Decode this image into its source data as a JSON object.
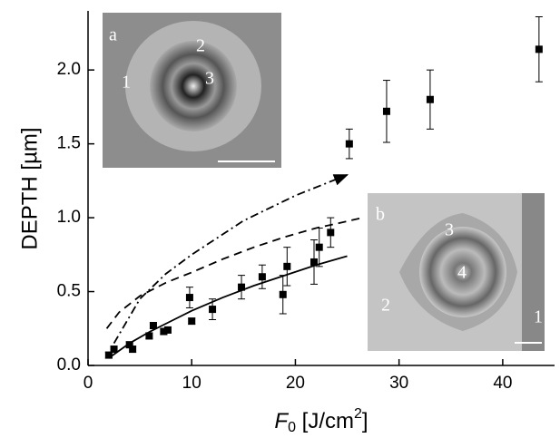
{
  "chart_data": {
    "type": "scatter",
    "ylabel": "DEPTH [µm]",
    "xlabel": {
      "main": "F",
      "sub": "0",
      "unit": " [J/cm",
      "sup": "2",
      "end": "]"
    },
    "xlim": [
      0,
      45
    ],
    "ylim": [
      0,
      2.4
    ],
    "xticks": [
      0,
      10,
      20,
      30,
      40
    ],
    "yticks": [
      {
        "value": 0,
        "label": "0.0"
      },
      {
        "value": 0.5,
        "label": "0.5"
      },
      {
        "value": 1,
        "label": "1.0"
      },
      {
        "value": 1.5,
        "label": "1.5"
      },
      {
        "value": 2,
        "label": "2.0"
      }
    ],
    "color": "#000000",
    "points": {
      "x": [
        2.0,
        2.5,
        4.0,
        4.3,
        5.9,
        6.3,
        7.3,
        7.7,
        9.8,
        10.0,
        12.0,
        14.8,
        16.8,
        18.8,
        19.2,
        21.8,
        22.3,
        23.4,
        25.2,
        28.8,
        33.0,
        43.5
      ],
      "values": [
        0.07,
        0.11,
        0.14,
        0.11,
        0.2,
        0.27,
        0.23,
        0.24,
        0.46,
        0.3,
        0.38,
        0.53,
        0.6,
        0.48,
        0.67,
        0.7,
        0.8,
        0.9,
        1.5,
        1.72,
        1.8,
        2.14
      ],
      "errors": [
        0.02,
        0.02,
        0.02,
        0.02,
        0.02,
        0.02,
        0.02,
        0.02,
        0.07,
        0.02,
        0.07,
        0.08,
        0.08,
        0.13,
        0.13,
        0.15,
        0.13,
        0.1,
        0.1,
        0.21,
        0.2,
        0.22
      ]
    },
    "curves": [
      {
        "style": "solid",
        "x": [
          2,
          4,
          6,
          8,
          10,
          13,
          16,
          19,
          22,
          25
        ],
        "values": [
          0.05,
          0.15,
          0.23,
          0.3,
          0.37,
          0.46,
          0.54,
          0.61,
          0.68,
          0.74
        ]
      },
      {
        "style": "dashed",
        "x": [
          1.8,
          3,
          5,
          7.5,
          10,
          13,
          16,
          19,
          22,
          24,
          26.5
        ],
        "values": [
          0.25,
          0.36,
          0.47,
          0.56,
          0.63,
          0.72,
          0.8,
          0.87,
          0.93,
          0.96,
          1.0
        ]
      },
      {
        "style": "dashdot",
        "x": [
          2.5,
          5,
          7.5,
          10,
          15,
          20,
          25
        ],
        "values": [
          0.15,
          0.45,
          0.62,
          0.75,
          0.98,
          1.15,
          1.29
        ]
      }
    ],
    "insets": [
      {
        "tag": "a",
        "labels": [
          "1",
          "2",
          "3"
        ]
      },
      {
        "tag": "b",
        "labels": [
          "1",
          "2",
          "3",
          "4"
        ]
      }
    ]
  }
}
